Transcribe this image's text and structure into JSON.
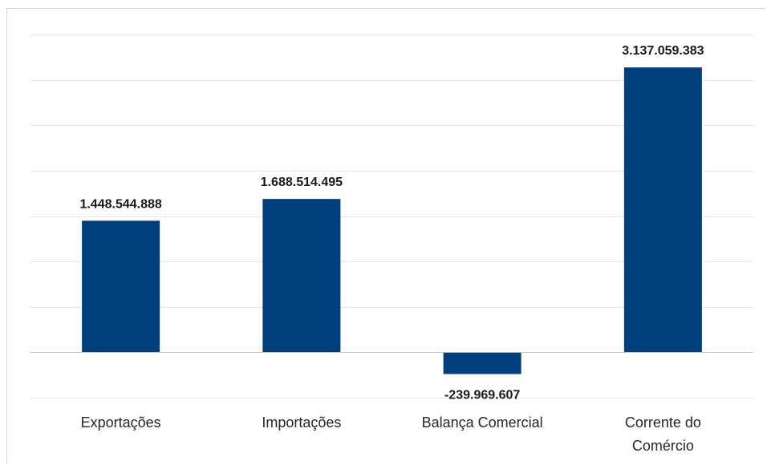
{
  "chart_data": {
    "type": "bar",
    "categories": [
      [
        "Exportações"
      ],
      [
        "Importações"
      ],
      [
        "Balança Comercial"
      ],
      [
        "Corrente do",
        "Comércio"
      ]
    ],
    "values": [
      1448544888,
      1688514495,
      -239969607,
      3137059383
    ],
    "data_labels": [
      "1.448.544.888",
      "1.688.514.495",
      "-239.969.607",
      "3.137.059.383"
    ],
    "title": "",
    "xlabel": "",
    "ylabel": "",
    "ylim": [
      -500000000,
      3500000000
    ],
    "grid": true,
    "legend": "none",
    "bar_color": "#003f7d",
    "grid_color": "#e6e6e6",
    "axis_color": "#bfbfbf"
  }
}
